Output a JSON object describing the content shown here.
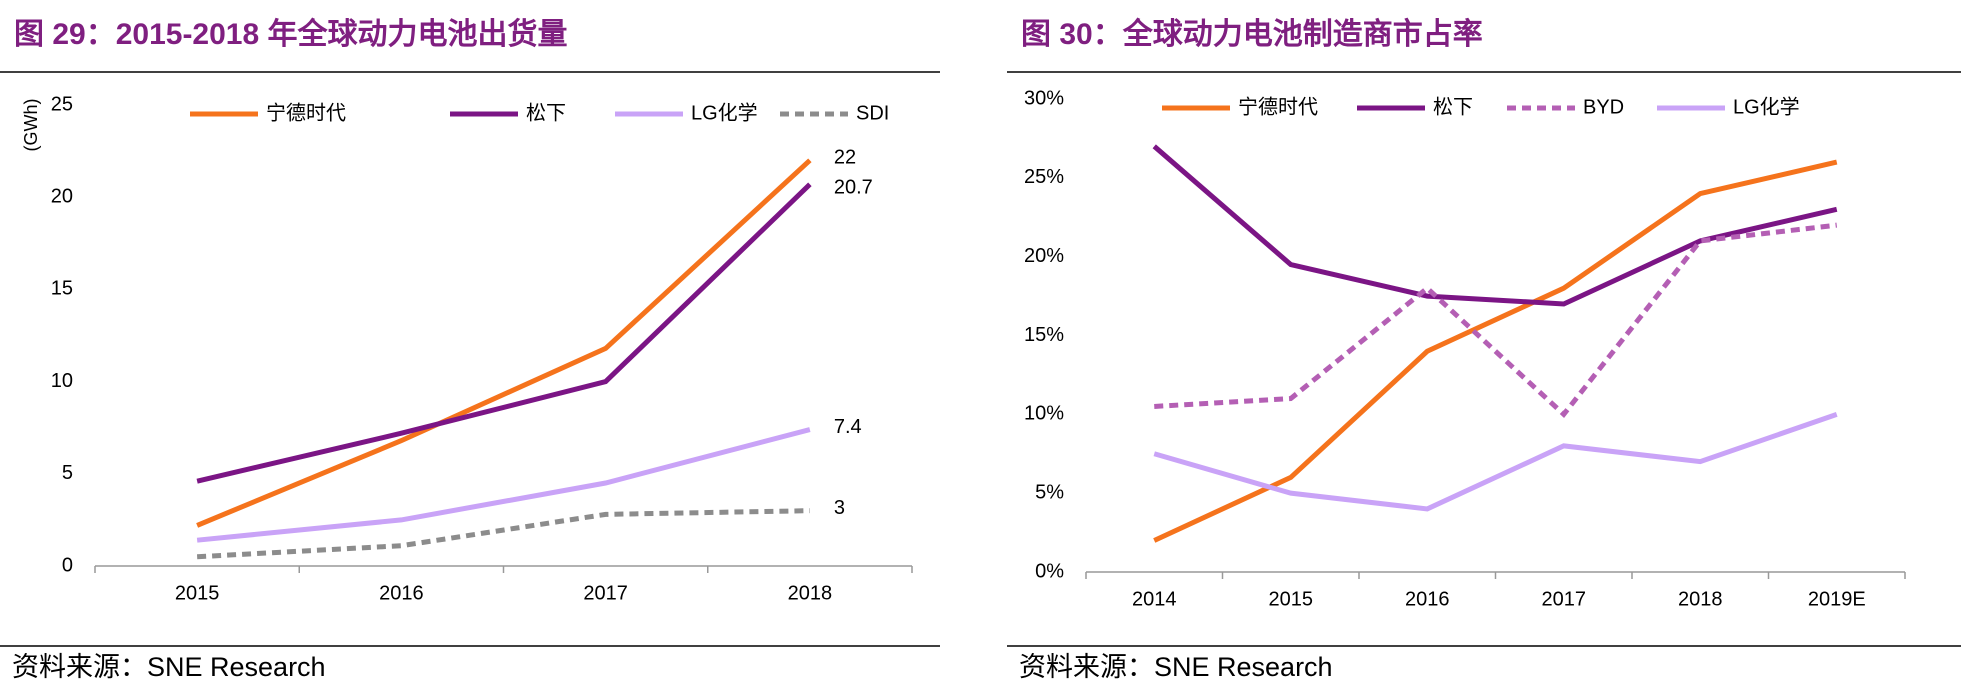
{
  "chart_data": [
    {
      "type": "line",
      "title": "图 29：2015-2018 年全球动力电池出货量",
      "y_label": "(GWh)",
      "categories": [
        "2015",
        "2016",
        "2017",
        "2018"
      ],
      "ylim": [
        0,
        25
      ],
      "yticks": [
        0,
        5,
        10,
        15,
        20,
        25
      ],
      "series": [
        {
          "name": "宁德时代",
          "color": "#f5731c",
          "values": [
            2.2,
            6.8,
            11.8,
            22
          ],
          "value_labels": [
            null,
            null,
            null,
            "22"
          ]
        },
        {
          "name": "松下",
          "color": "#7b1585",
          "values": [
            4.6,
            7.2,
            10,
            20.7
          ],
          "value_labels": [
            null,
            null,
            null,
            "20.7"
          ]
        },
        {
          "name": "LG化学",
          "color": "#c9a3f7",
          "values": [
            1.4,
            2.5,
            4.5,
            7.4
          ],
          "value_labels": [
            null,
            null,
            null,
            "7.4"
          ]
        },
        {
          "name": "SDI",
          "color": "#8c8c8c",
          "style": "dashed",
          "values": [
            0.5,
            1.1,
            2.8,
            3
          ],
          "value_labels": [
            null,
            null,
            null,
            "3"
          ]
        }
      ],
      "source": "资料来源：SNE Research"
    },
    {
      "type": "line",
      "title": "图 30：全球动力电池制造商市占率",
      "categories": [
        "2014",
        "2015",
        "2016",
        "2017",
        "2018",
        "2019E"
      ],
      "ylim": [
        0,
        30
      ],
      "yticks": [
        {
          "value": 0,
          "label": "0%"
        },
        {
          "value": 5,
          "label": "5%"
        },
        {
          "value": 10,
          "label": "10%"
        },
        {
          "value": 15,
          "label": "15%"
        },
        {
          "value": 20,
          "label": "20%"
        },
        {
          "value": 25,
          "label": "25%"
        },
        {
          "value": 30,
          "label": "30%"
        }
      ],
      "series": [
        {
          "name": "宁德时代",
          "color": "#f5731c",
          "values": [
            2,
            6,
            14,
            18,
            24,
            26
          ]
        },
        {
          "name": "松下",
          "color": "#7b1585",
          "values": [
            27,
            19.5,
            17.5,
            17,
            21,
            23
          ]
        },
        {
          "name": "BYD",
          "color": "#b45fb4",
          "style": "dashed",
          "values": [
            10.5,
            11,
            18,
            10,
            21,
            22
          ]
        },
        {
          "name": "LG化学",
          "color": "#c9a3f7",
          "values": [
            7.5,
            5,
            4,
            8,
            7,
            10
          ]
        }
      ],
      "source": "资料来源：SNE Research"
    }
  ]
}
